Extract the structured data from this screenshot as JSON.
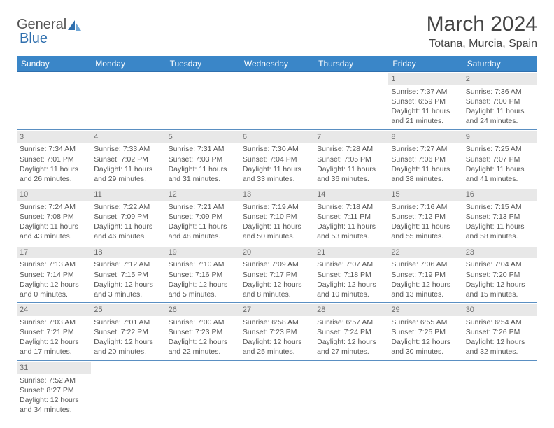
{
  "brand": {
    "part1": "General",
    "part2": "Blue"
  },
  "title": "March 2024",
  "location": "Totana, Murcia, Spain",
  "colors": {
    "header_bg": "#3a86c8",
    "header_text": "#ffffff",
    "daynum_bg": "#e8e8e8",
    "row_border": "#5a8fc2",
    "text": "#555555",
    "title_text": "#444444"
  },
  "weekdays": [
    "Sunday",
    "Monday",
    "Tuesday",
    "Wednesday",
    "Thursday",
    "Friday",
    "Saturday"
  ],
  "weeks": [
    [
      null,
      null,
      null,
      null,
      null,
      {
        "d": "1",
        "sr": "Sunrise: 7:37 AM",
        "ss": "Sunset: 6:59 PM",
        "dl1": "Daylight: 11 hours",
        "dl2": "and 21 minutes."
      },
      {
        "d": "2",
        "sr": "Sunrise: 7:36 AM",
        "ss": "Sunset: 7:00 PM",
        "dl1": "Daylight: 11 hours",
        "dl2": "and 24 minutes."
      }
    ],
    [
      {
        "d": "3",
        "sr": "Sunrise: 7:34 AM",
        "ss": "Sunset: 7:01 PM",
        "dl1": "Daylight: 11 hours",
        "dl2": "and 26 minutes."
      },
      {
        "d": "4",
        "sr": "Sunrise: 7:33 AM",
        "ss": "Sunset: 7:02 PM",
        "dl1": "Daylight: 11 hours",
        "dl2": "and 29 minutes."
      },
      {
        "d": "5",
        "sr": "Sunrise: 7:31 AM",
        "ss": "Sunset: 7:03 PM",
        "dl1": "Daylight: 11 hours",
        "dl2": "and 31 minutes."
      },
      {
        "d": "6",
        "sr": "Sunrise: 7:30 AM",
        "ss": "Sunset: 7:04 PM",
        "dl1": "Daylight: 11 hours",
        "dl2": "and 33 minutes."
      },
      {
        "d": "7",
        "sr": "Sunrise: 7:28 AM",
        "ss": "Sunset: 7:05 PM",
        "dl1": "Daylight: 11 hours",
        "dl2": "and 36 minutes."
      },
      {
        "d": "8",
        "sr": "Sunrise: 7:27 AM",
        "ss": "Sunset: 7:06 PM",
        "dl1": "Daylight: 11 hours",
        "dl2": "and 38 minutes."
      },
      {
        "d": "9",
        "sr": "Sunrise: 7:25 AM",
        "ss": "Sunset: 7:07 PM",
        "dl1": "Daylight: 11 hours",
        "dl2": "and 41 minutes."
      }
    ],
    [
      {
        "d": "10",
        "sr": "Sunrise: 7:24 AM",
        "ss": "Sunset: 7:08 PM",
        "dl1": "Daylight: 11 hours",
        "dl2": "and 43 minutes."
      },
      {
        "d": "11",
        "sr": "Sunrise: 7:22 AM",
        "ss": "Sunset: 7:09 PM",
        "dl1": "Daylight: 11 hours",
        "dl2": "and 46 minutes."
      },
      {
        "d": "12",
        "sr": "Sunrise: 7:21 AM",
        "ss": "Sunset: 7:09 PM",
        "dl1": "Daylight: 11 hours",
        "dl2": "and 48 minutes."
      },
      {
        "d": "13",
        "sr": "Sunrise: 7:19 AM",
        "ss": "Sunset: 7:10 PM",
        "dl1": "Daylight: 11 hours",
        "dl2": "and 50 minutes."
      },
      {
        "d": "14",
        "sr": "Sunrise: 7:18 AM",
        "ss": "Sunset: 7:11 PM",
        "dl1": "Daylight: 11 hours",
        "dl2": "and 53 minutes."
      },
      {
        "d": "15",
        "sr": "Sunrise: 7:16 AM",
        "ss": "Sunset: 7:12 PM",
        "dl1": "Daylight: 11 hours",
        "dl2": "and 55 minutes."
      },
      {
        "d": "16",
        "sr": "Sunrise: 7:15 AM",
        "ss": "Sunset: 7:13 PM",
        "dl1": "Daylight: 11 hours",
        "dl2": "and 58 minutes."
      }
    ],
    [
      {
        "d": "17",
        "sr": "Sunrise: 7:13 AM",
        "ss": "Sunset: 7:14 PM",
        "dl1": "Daylight: 12 hours",
        "dl2": "and 0 minutes."
      },
      {
        "d": "18",
        "sr": "Sunrise: 7:12 AM",
        "ss": "Sunset: 7:15 PM",
        "dl1": "Daylight: 12 hours",
        "dl2": "and 3 minutes."
      },
      {
        "d": "19",
        "sr": "Sunrise: 7:10 AM",
        "ss": "Sunset: 7:16 PM",
        "dl1": "Daylight: 12 hours",
        "dl2": "and 5 minutes."
      },
      {
        "d": "20",
        "sr": "Sunrise: 7:09 AM",
        "ss": "Sunset: 7:17 PM",
        "dl1": "Daylight: 12 hours",
        "dl2": "and 8 minutes."
      },
      {
        "d": "21",
        "sr": "Sunrise: 7:07 AM",
        "ss": "Sunset: 7:18 PM",
        "dl1": "Daylight: 12 hours",
        "dl2": "and 10 minutes."
      },
      {
        "d": "22",
        "sr": "Sunrise: 7:06 AM",
        "ss": "Sunset: 7:19 PM",
        "dl1": "Daylight: 12 hours",
        "dl2": "and 13 minutes."
      },
      {
        "d": "23",
        "sr": "Sunrise: 7:04 AM",
        "ss": "Sunset: 7:20 PM",
        "dl1": "Daylight: 12 hours",
        "dl2": "and 15 minutes."
      }
    ],
    [
      {
        "d": "24",
        "sr": "Sunrise: 7:03 AM",
        "ss": "Sunset: 7:21 PM",
        "dl1": "Daylight: 12 hours",
        "dl2": "and 17 minutes."
      },
      {
        "d": "25",
        "sr": "Sunrise: 7:01 AM",
        "ss": "Sunset: 7:22 PM",
        "dl1": "Daylight: 12 hours",
        "dl2": "and 20 minutes."
      },
      {
        "d": "26",
        "sr": "Sunrise: 7:00 AM",
        "ss": "Sunset: 7:23 PM",
        "dl1": "Daylight: 12 hours",
        "dl2": "and 22 minutes."
      },
      {
        "d": "27",
        "sr": "Sunrise: 6:58 AM",
        "ss": "Sunset: 7:23 PM",
        "dl1": "Daylight: 12 hours",
        "dl2": "and 25 minutes."
      },
      {
        "d": "28",
        "sr": "Sunrise: 6:57 AM",
        "ss": "Sunset: 7:24 PM",
        "dl1": "Daylight: 12 hours",
        "dl2": "and 27 minutes."
      },
      {
        "d": "29",
        "sr": "Sunrise: 6:55 AM",
        "ss": "Sunset: 7:25 PM",
        "dl1": "Daylight: 12 hours",
        "dl2": "and 30 minutes."
      },
      {
        "d": "30",
        "sr": "Sunrise: 6:54 AM",
        "ss": "Sunset: 7:26 PM",
        "dl1": "Daylight: 12 hours",
        "dl2": "and 32 minutes."
      }
    ],
    [
      {
        "d": "31",
        "sr": "Sunrise: 7:52 AM",
        "ss": "Sunset: 8:27 PM",
        "dl1": "Daylight: 12 hours",
        "dl2": "and 34 minutes."
      },
      null,
      null,
      null,
      null,
      null,
      null
    ]
  ]
}
